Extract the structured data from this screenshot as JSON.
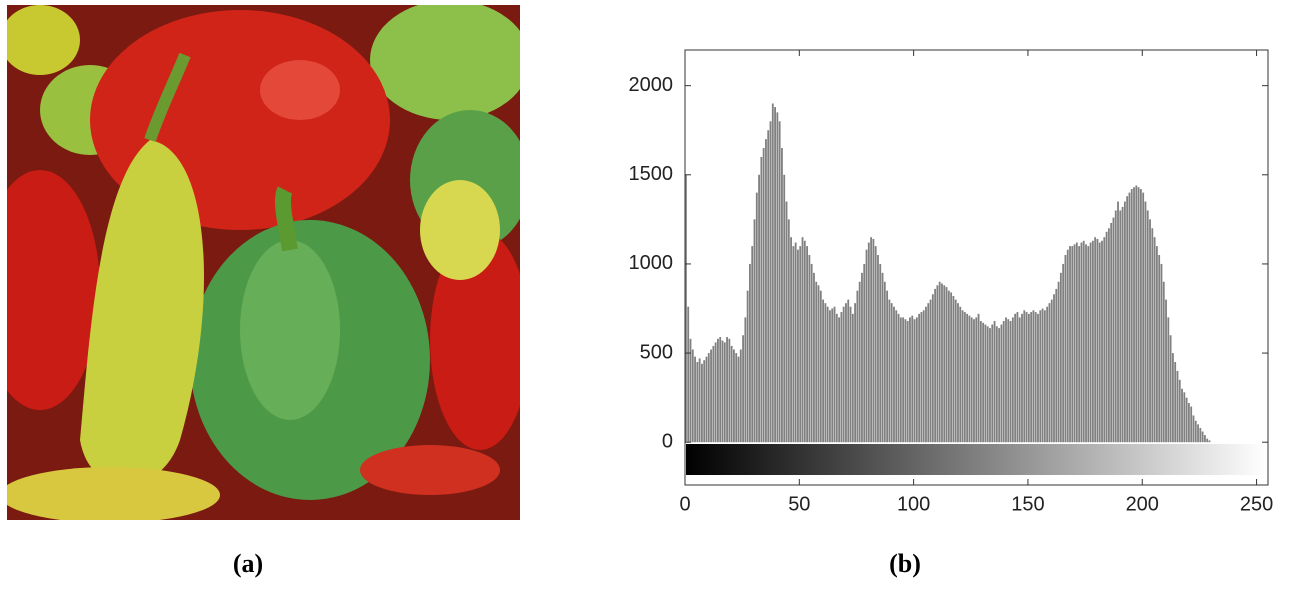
{
  "captions": [
    "(a)",
    "(b)"
  ],
  "chart_data": {
    "type": "histogram",
    "color": "#808080",
    "xlim": [
      0,
      255
    ],
    "ylim": [
      -240,
      2200
    ],
    "xticks": [
      0,
      50,
      100,
      150,
      200,
      250
    ],
    "yticks": [
      0,
      500,
      1000,
      1500,
      2000
    ],
    "grid": false,
    "bins": [
      0,
      1,
      2,
      3,
      4,
      5,
      6,
      7,
      8,
      9,
      10,
      11,
      12,
      13,
      14,
      15,
      16,
      17,
      18,
      19,
      20,
      21,
      22,
      23,
      24,
      25,
      26,
      27,
      28,
      29,
      30,
      31,
      32,
      33,
      34,
      35,
      36,
      37,
      38,
      39,
      40,
      41,
      42,
      43,
      44,
      45,
      46,
      47,
      48,
      49,
      50,
      51,
      52,
      53,
      54,
      55,
      56,
      57,
      58,
      59,
      60,
      61,
      62,
      63,
      64,
      65,
      66,
      67,
      68,
      69,
      70,
      71,
      72,
      73,
      74,
      75,
      76,
      77,
      78,
      79,
      80,
      81,
      82,
      83,
      84,
      85,
      86,
      87,
      88,
      89,
      90,
      91,
      92,
      93,
      94,
      95,
      96,
      97,
      98,
      99,
      100,
      101,
      102,
      103,
      104,
      105,
      106,
      107,
      108,
      109,
      110,
      111,
      112,
      113,
      114,
      115,
      116,
      117,
      118,
      119,
      120,
      121,
      122,
      123,
      124,
      125,
      126,
      127,
      128,
      129,
      130,
      131,
      132,
      133,
      134,
      135,
      136,
      137,
      138,
      139,
      140,
      141,
      142,
      143,
      144,
      145,
      146,
      147,
      148,
      149,
      150,
      151,
      152,
      153,
      154,
      155,
      156,
      157,
      158,
      159,
      160,
      161,
      162,
      163,
      164,
      165,
      166,
      167,
      168,
      169,
      170,
      171,
      172,
      173,
      174,
      175,
      176,
      177,
      178,
      179,
      180,
      181,
      182,
      183,
      184,
      185,
      186,
      187,
      188,
      189,
      190,
      191,
      192,
      193,
      194,
      195,
      196,
      197,
      198,
      199,
      200,
      201,
      202,
      203,
      204,
      205,
      206,
      207,
      208,
      209,
      210,
      211,
      212,
      213,
      214,
      215,
      216,
      217,
      218,
      219,
      220,
      221,
      222,
      223,
      224,
      225,
      226,
      227,
      228,
      229,
      230,
      231,
      232,
      233,
      234,
      235,
      236,
      237,
      238,
      239,
      240,
      241,
      242,
      243,
      244,
      245,
      246,
      247,
      248,
      249,
      250,
      251,
      252,
      253,
      254,
      255,
      256
    ],
    "values": [
      1500,
      760,
      580,
      520,
      480,
      450,
      470,
      440,
      460,
      480,
      500,
      520,
      540,
      560,
      580,
      590,
      570,
      560,
      590,
      580,
      540,
      520,
      500,
      480,
      520,
      600,
      700,
      850,
      1000,
      1100,
      1250,
      1400,
      1500,
      1600,
      1650,
      1700,
      1750,
      1800,
      1900,
      1880,
      1850,
      1800,
      1650,
      1500,
      1350,
      1250,
      1150,
      1100,
      1120,
      1080,
      1100,
      1150,
      1130,
      1100,
      1050,
      1000,
      950,
      900,
      880,
      850,
      800,
      780,
      760,
      740,
      750,
      760,
      720,
      700,
      730,
      760,
      780,
      800,
      760,
      720,
      780,
      850,
      900,
      950,
      1000,
      1080,
      1120,
      1150,
      1140,
      1100,
      1050,
      1000,
      950,
      900,
      850,
      800,
      780,
      760,
      740,
      720,
      700,
      700,
      690,
      680,
      700,
      710,
      690,
      700,
      720,
      730,
      740,
      760,
      780,
      800,
      830,
      860,
      880,
      900,
      890,
      880,
      870,
      850,
      840,
      820,
      800,
      780,
      760,
      740,
      730,
      720,
      710,
      700,
      690,
      700,
      720,
      680,
      670,
      660,
      650,
      640,
      660,
      680,
      650,
      640,
      660,
      680,
      700,
      690,
      680,
      700,
      720,
      730,
      700,
      720,
      740,
      730,
      720,
      730,
      740,
      730,
      720,
      740,
      750,
      740,
      760,
      780,
      800,
      830,
      860,
      900,
      950,
      1000,
      1050,
      1080,
      1100,
      1100,
      1110,
      1120,
      1100,
      1120,
      1130,
      1110,
      1100,
      1120,
      1130,
      1150,
      1140,
      1120,
      1130,
      1150,
      1180,
      1200,
      1230,
      1260,
      1300,
      1350,
      1300,
      1320,
      1350,
      1380,
      1400,
      1420,
      1430,
      1440,
      1430,
      1420,
      1400,
      1350,
      1300,
      1250,
      1200,
      1150,
      1100,
      1050,
      1000,
      900,
      800,
      700,
      600,
      500,
      450,
      400,
      350,
      300,
      280,
      250,
      220,
      200,
      150,
      120,
      100,
      80,
      60,
      40,
      20,
      10,
      0,
      0,
      0,
      0,
      0,
      0,
      0,
      0,
      0,
      0,
      0,
      0,
      0,
      0,
      0,
      0,
      0,
      0,
      0,
      0,
      0,
      0,
      0,
      0,
      0,
      0
    ]
  }
}
